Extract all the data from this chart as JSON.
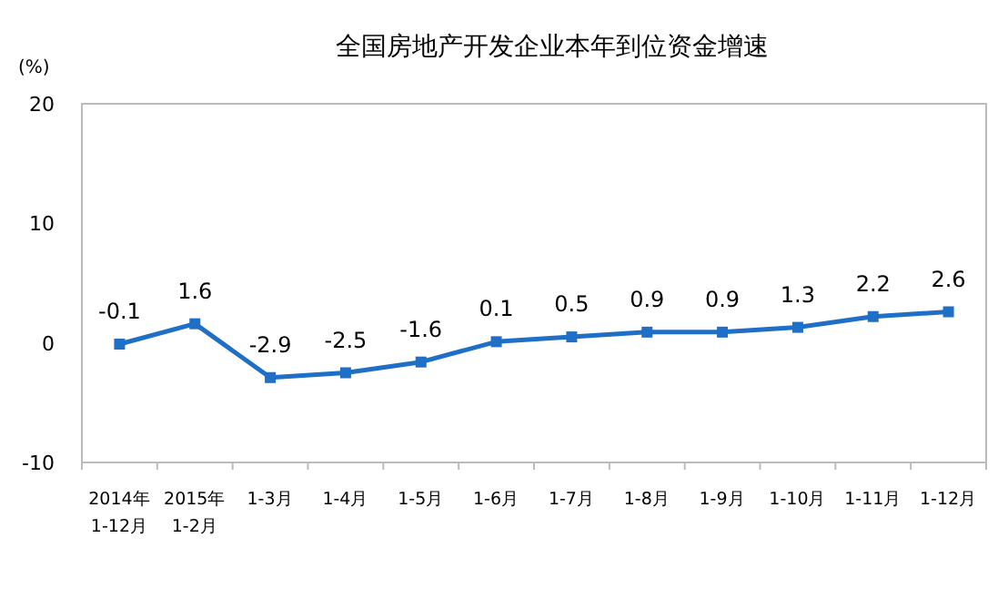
{
  "chart_data": {
    "type": "line",
    "title": "全国房地产开发企业本年到位资金增速",
    "ylabel": "(%)",
    "categories": [
      "2014年 1-12月",
      "2015年 1-2月",
      "1-3月",
      "1-4月",
      "1-5月",
      "1-6月",
      "1-7月",
      "1-8月",
      "1-9月",
      "1-10月",
      "1-11月",
      "1-12月"
    ],
    "series": [
      {
        "color": "#1f6fc6",
        "values": [
          -0.1,
          1.6,
          -2.9,
          -2.5,
          -1.6,
          0.1,
          0.5,
          0.9,
          0.9,
          1.3,
          2.2,
          2.6
        ]
      }
    ],
    "ylim": [
      -10,
      20
    ],
    "yticks": [
      -10,
      0,
      10,
      20
    ],
    "marker": "square",
    "data_labels": true,
    "grid": false
  }
}
